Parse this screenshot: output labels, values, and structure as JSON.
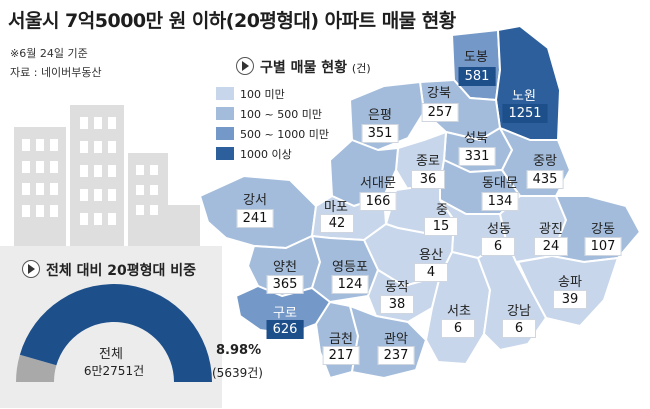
{
  "title": "서울시 7억5000만 원 이하(20평형대) 아파트 매물 현황",
  "notes": {
    "date": "※6월 24일 기준",
    "source": "자료 : 네이버부동산"
  },
  "legend": {
    "title": "구별 매물 현황",
    "unit": "(건)",
    "items": [
      {
        "label": "100 미만",
        "color": "#c7d6ea"
      },
      {
        "label": "100 ~ 500 미만",
        "color": "#a3bcdb"
      },
      {
        "label": "500 ~ 1000 미만",
        "color": "#7498c7"
      },
      {
        "label": "1000 이상",
        "color": "#2c5f9c"
      }
    ]
  },
  "districts": [
    {
      "name": "도봉",
      "value": "581"
    },
    {
      "name": "노원",
      "value": "1251"
    },
    {
      "name": "강북",
      "value": "257"
    },
    {
      "name": "은평",
      "value": "351"
    },
    {
      "name": "성북",
      "value": "331"
    },
    {
      "name": "종로",
      "value": "36"
    },
    {
      "name": "중랑",
      "value": "435"
    },
    {
      "name": "서대문",
      "value": "166"
    },
    {
      "name": "동대문",
      "value": "134"
    },
    {
      "name": "강서",
      "value": "241"
    },
    {
      "name": "마포",
      "value": "42"
    },
    {
      "name": "중",
      "value": "15"
    },
    {
      "name": "성동",
      "value": "6"
    },
    {
      "name": "광진",
      "value": "24"
    },
    {
      "name": "강동",
      "value": "107"
    },
    {
      "name": "용산",
      "value": "4"
    },
    {
      "name": "양천",
      "value": "365"
    },
    {
      "name": "영등포",
      "value": "124"
    },
    {
      "name": "동작",
      "value": "38"
    },
    {
      "name": "송파",
      "value": "39"
    },
    {
      "name": "구로",
      "value": "626"
    },
    {
      "name": "서초",
      "value": "6"
    },
    {
      "name": "강남",
      "value": "6"
    },
    {
      "name": "금천",
      "value": "217"
    },
    {
      "name": "관악",
      "value": "237"
    }
  ],
  "ratio": {
    "title": "전체 대비 20평형대 비중",
    "total_label": "전체",
    "total_value": "6만2751건",
    "percent_label": "8.98%",
    "count_label": "(5639건)",
    "share": 0.0898
  },
  "colors": {
    "gauge_rest": "#a9a9a9",
    "gauge_share": "#1d4f8a",
    "value_box_dark": "#1d4f8a"
  }
}
